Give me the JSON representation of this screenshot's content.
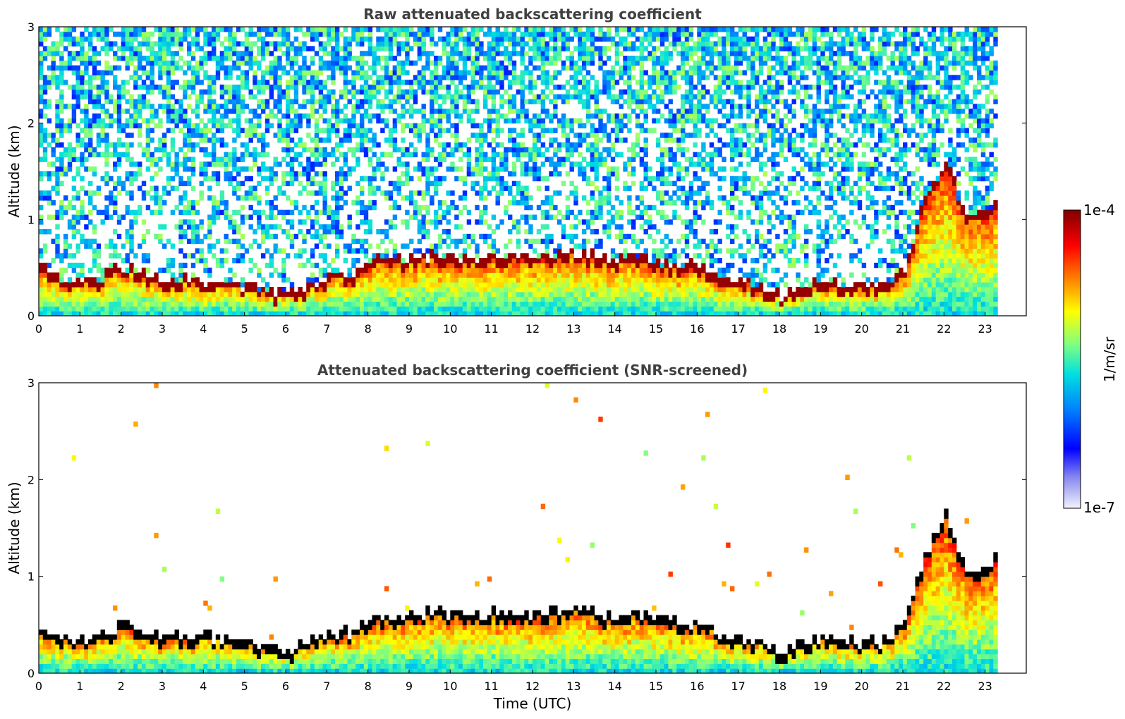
{
  "chart_data": [
    {
      "type": "heatmap",
      "title": "Raw attenuated backscattering coefficient",
      "xlabel": "",
      "ylabel": "Altitude (km)",
      "xlim": [
        0,
        24
      ],
      "ylim": [
        0,
        3
      ],
      "x_ticks": [
        "0",
        "1",
        "2",
        "3",
        "4",
        "5",
        "6",
        "7",
        "8",
        "9",
        "10",
        "11",
        "12",
        "13",
        "14",
        "15",
        "16",
        "17",
        "18",
        "19",
        "20",
        "21",
        "22",
        "23"
      ],
      "y_ticks": [
        "0",
        "1",
        "2",
        "3"
      ],
      "data_extent_hours": [
        0,
        23.3
      ],
      "screened": false
    },
    {
      "type": "heatmap",
      "title": "Attenuated backscattering coefficient (SNR-screened)",
      "xlabel": "Time (UTC)",
      "ylabel": "Altitude (km)",
      "xlim": [
        0,
        24
      ],
      "ylim": [
        0,
        3
      ],
      "x_ticks": [
        "0",
        "1",
        "2",
        "3",
        "4",
        "5",
        "6",
        "7",
        "8",
        "9",
        "10",
        "11",
        "12",
        "13",
        "14",
        "15",
        "16",
        "17",
        "18",
        "19",
        "20",
        "21",
        "22",
        "23"
      ],
      "y_ticks": [
        "0",
        "1",
        "2",
        "3"
      ],
      "data_extent_hours": [
        0,
        23.3
      ],
      "screened": true
    }
  ],
  "colorbar": {
    "label": "1/m/sr",
    "max_label": "1e-4",
    "min_label": "1e-7",
    "scale": "log",
    "range": [
      1e-07,
      0.0001
    ],
    "colormap": [
      "#f2f2ff",
      "#8c8cf0",
      "#0000ff",
      "#0080ff",
      "#00e0e0",
      "#80ff80",
      "#ffff00",
      "#ff8000",
      "#ff0000",
      "#800000"
    ]
  },
  "boundary_layer_top_km": {
    "hours": [
      0,
      0.5,
      1,
      1.5,
      2,
      2.5,
      3,
      3.5,
      4,
      4.5,
      5,
      5.5,
      6,
      6.5,
      7,
      7.5,
      8,
      8.5,
      9,
      9.5,
      10,
      10.5,
      11,
      11.5,
      12,
      12.5,
      13,
      13.5,
      14,
      14.5,
      15,
      15.5,
      16,
      16.5,
      17,
      17.5,
      18,
      18.5,
      19,
      19.5,
      20,
      20.5,
      21,
      21.5,
      22,
      22.5,
      23,
      23.3
    ],
    "altitude": [
      0.5,
      0.35,
      0.33,
      0.38,
      0.5,
      0.43,
      0.37,
      0.36,
      0.35,
      0.33,
      0.29,
      0.24,
      0.21,
      0.3,
      0.38,
      0.4,
      0.55,
      0.56,
      0.58,
      0.6,
      0.6,
      0.55,
      0.62,
      0.6,
      0.58,
      0.62,
      0.65,
      0.6,
      0.55,
      0.6,
      0.55,
      0.5,
      0.5,
      0.4,
      0.35,
      0.3,
      0.2,
      0.3,
      0.35,
      0.3,
      0.3,
      0.3,
      0.5,
      1.2,
      1.6,
      1.0,
      1.1,
      1.2
    ]
  }
}
